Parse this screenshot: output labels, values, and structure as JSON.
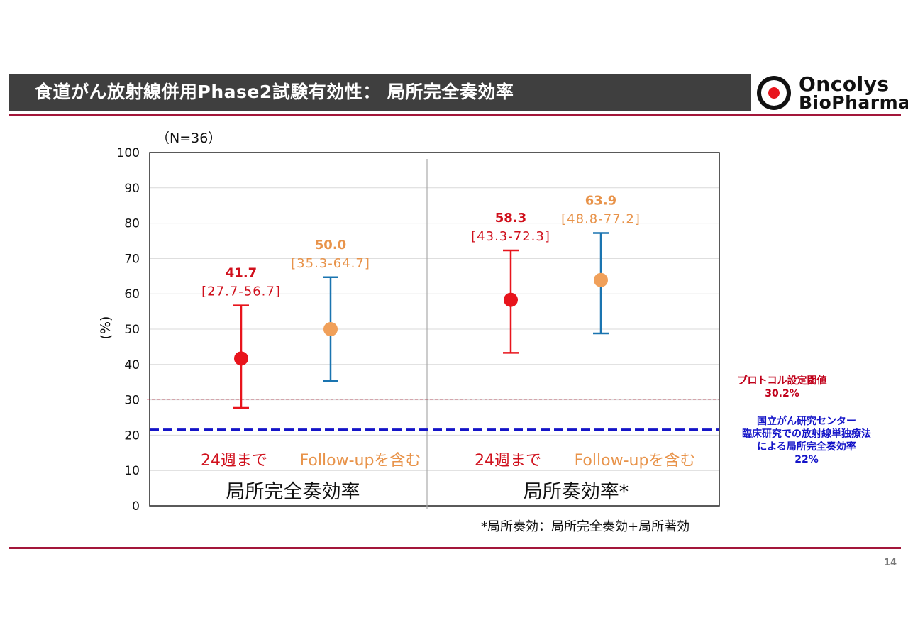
{
  "header": {
    "title": "食道がん放射線併用Phase2試験有効性： 局所完全奏効率"
  },
  "logo": {
    "line1": "Oncolys",
    "line2": "BioPharma"
  },
  "n_label": "（N=36）",
  "footnote": "*局所奏効：局所完全奏効+局所著効",
  "page_number": "14",
  "notes": {
    "protocol_threshold": {
      "line1": "プロトコル設定閾値",
      "line2": "30.2%"
    },
    "ncc_reference": {
      "line1": "国立がん研究センター",
      "line2": "臨床研究での放射線単独療法",
      "line3": "による局所完全奏効率",
      "line4": "22%"
    }
  },
  "colors": {
    "header_bg": "#3f3f3f",
    "accent_rule": "#a3163a",
    "red_series": "#e8141c",
    "orange_series": "#f0a05a",
    "blue_errorbar": "#1a74b0",
    "threshold_line": "#c0001a",
    "reference_line": "#1414c8"
  },
  "chart_data": {
    "type": "scatter",
    "ylabel": "(%)",
    "ylim": [
      0,
      100
    ],
    "yticks": [
      0,
      10,
      20,
      30,
      40,
      50,
      60,
      70,
      80,
      90,
      100
    ],
    "groups": [
      {
        "label": "局所完全奏効率",
        "points": [
          {
            "label": "24週まで",
            "value": 41.7,
            "value_label": "41.7",
            "ci_low": 27.7,
            "ci_high": 56.7,
            "ci_label": "[27.7-56.7]",
            "marker": "red",
            "errorbar": "red"
          },
          {
            "label": "Follow-upを含む",
            "value": 50.0,
            "value_label": "50.0",
            "ci_low": 35.3,
            "ci_high": 64.7,
            "ci_label": "[35.3-64.7]",
            "marker": "orange",
            "errorbar": "blue"
          }
        ]
      },
      {
        "label": "局所奏効率*",
        "points": [
          {
            "label": "24週まで",
            "value": 58.3,
            "value_label": "58.3",
            "ci_low": 43.3,
            "ci_high": 72.3,
            "ci_label": "[43.3-72.3]",
            "marker": "red",
            "errorbar": "red"
          },
          {
            "label": "Follow-upを含む",
            "value": 63.9,
            "value_label": "63.9",
            "ci_low": 48.8,
            "ci_high": 77.2,
            "ci_label": "[48.8-77.2]",
            "marker": "orange",
            "errorbar": "blue"
          }
        ]
      }
    ],
    "reference_lines": [
      {
        "value": 30.2,
        "style": "dashed-thin",
        "color": "threshold_line"
      },
      {
        "value": 21.5,
        "style": "dashed-thick",
        "color": "reference_line"
      }
    ],
    "grid": true,
    "legend": "none"
  }
}
